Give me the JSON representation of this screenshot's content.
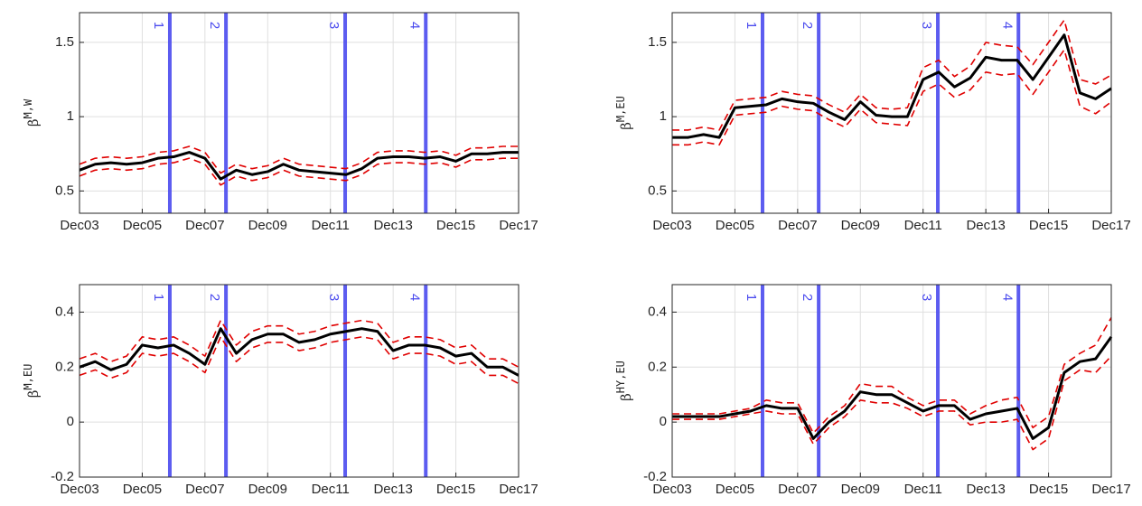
{
  "chart_data": [
    {
      "type": "line",
      "ylabel": "β",
      "ylabel_superscript": "M,W",
      "x": [
        2003.92,
        2004.42,
        2004.92,
        2005.42,
        2005.92,
        2006.42,
        2006.92,
        2007.42,
        2007.92,
        2008.42,
        2008.92,
        2009.42,
        2009.92,
        2010.42,
        2010.92,
        2011.42,
        2011.92,
        2012.42,
        2012.92,
        2013.42,
        2013.92,
        2014.42,
        2014.92,
        2015.42,
        2015.92,
        2016.42,
        2016.92,
        2017.42,
        2017.92
      ],
      "series": [
        {
          "color": "#000000",
          "values": [
            0.64,
            0.68,
            0.69,
            0.68,
            0.69,
            0.72,
            0.73,
            0.76,
            0.72,
            0.58,
            0.64,
            0.61,
            0.63,
            0.68,
            0.64,
            0.63,
            0.62,
            0.61,
            0.65,
            0.72,
            0.73,
            0.73,
            0.72,
            0.73,
            0.7,
            0.75,
            0.75,
            0.76,
            0.76
          ]
        },
        {
          "color": "#e00000",
          "dashed": true,
          "values": [
            0.68,
            0.72,
            0.73,
            0.72,
            0.73,
            0.76,
            0.77,
            0.8,
            0.76,
            0.62,
            0.68,
            0.65,
            0.67,
            0.72,
            0.68,
            0.67,
            0.66,
            0.65,
            0.69,
            0.76,
            0.77,
            0.77,
            0.76,
            0.77,
            0.74,
            0.79,
            0.79,
            0.8,
            0.8
          ]
        },
        {
          "color": "#e00000",
          "dashed": true,
          "values": [
            0.6,
            0.64,
            0.65,
            0.64,
            0.65,
            0.68,
            0.69,
            0.72,
            0.68,
            0.54,
            0.6,
            0.57,
            0.59,
            0.64,
            0.6,
            0.59,
            0.58,
            0.57,
            0.61,
            0.68,
            0.69,
            0.69,
            0.68,
            0.69,
            0.66,
            0.71,
            0.71,
            0.72,
            0.72
          ]
        }
      ],
      "events": [
        {
          "x": 2006.8,
          "label": "1"
        },
        {
          "x": 2008.59,
          "label": "2"
        },
        {
          "x": 2012.39,
          "label": "3"
        },
        {
          "x": 2014.96,
          "label": "4"
        }
      ],
      "event_color": "#4a4aee",
      "xlim": [
        2003.92,
        2017.92
      ],
      "xticks": [
        {
          "value": 2003.92,
          "label": "Dec03"
        },
        {
          "value": 2005.92,
          "label": "Dec05"
        },
        {
          "value": 2007.92,
          "label": "Dec07"
        },
        {
          "value": 2009.92,
          "label": "Dec09"
        },
        {
          "value": 2011.92,
          "label": "Dec11"
        },
        {
          "value": 2013.92,
          "label": "Dec13"
        },
        {
          "value": 2015.92,
          "label": "Dec15"
        },
        {
          "value": 2017.92,
          "label": "Dec17"
        }
      ],
      "ylim": [
        0.35,
        1.7
      ],
      "yticks": [
        0.5,
        1,
        1.5
      ],
      "grid": true
    },
    {
      "type": "line",
      "ylabel": "β",
      "ylabel_superscript": "M,EU",
      "x": [
        2003.92,
        2004.42,
        2004.92,
        2005.42,
        2005.92,
        2006.42,
        2006.92,
        2007.42,
        2007.92,
        2008.42,
        2008.92,
        2009.42,
        2009.92,
        2010.42,
        2010.92,
        2011.42,
        2011.92,
        2012.42,
        2012.92,
        2013.42,
        2013.92,
        2014.42,
        2014.92,
        2015.42,
        2015.92,
        2016.42,
        2016.92,
        2017.42,
        2017.92
      ],
      "series": [
        {
          "color": "#000000",
          "values": [
            0.86,
            0.86,
            0.88,
            0.86,
            1.06,
            1.07,
            1.08,
            1.12,
            1.1,
            1.09,
            1.03,
            0.98,
            1.1,
            1.01,
            1.0,
            1.0,
            1.25,
            1.3,
            1.2,
            1.26,
            1.4,
            1.38,
            1.38,
            1.25,
            1.4,
            1.55,
            1.16,
            1.12,
            1.19
          ]
        },
        {
          "color": "#e00000",
          "dashed": true,
          "values": [
            0.91,
            0.91,
            0.93,
            0.91,
            1.11,
            1.12,
            1.13,
            1.17,
            1.15,
            1.14,
            1.08,
            1.03,
            1.15,
            1.06,
            1.05,
            1.06,
            1.33,
            1.38,
            1.27,
            1.34,
            1.5,
            1.48,
            1.47,
            1.35,
            1.5,
            1.65,
            1.25,
            1.22,
            1.28
          ]
        },
        {
          "color": "#e00000",
          "dashed": true,
          "values": [
            0.81,
            0.81,
            0.83,
            0.81,
            1.01,
            1.02,
            1.03,
            1.07,
            1.05,
            1.04,
            0.98,
            0.93,
            1.05,
            0.96,
            0.95,
            0.94,
            1.17,
            1.22,
            1.13,
            1.18,
            1.3,
            1.28,
            1.29,
            1.15,
            1.3,
            1.45,
            1.07,
            1.02,
            1.1
          ]
        }
      ],
      "events": [
        {
          "x": 2006.8,
          "label": "1"
        },
        {
          "x": 2008.59,
          "label": "2"
        },
        {
          "x": 2012.39,
          "label": "3"
        },
        {
          "x": 2014.96,
          "label": "4"
        }
      ],
      "event_color": "#4a4aee",
      "xlim": [
        2003.92,
        2017.92
      ],
      "xticks": [
        {
          "value": 2003.92,
          "label": "Dec03"
        },
        {
          "value": 2005.92,
          "label": "Dec05"
        },
        {
          "value": 2007.92,
          "label": "Dec07"
        },
        {
          "value": 2009.92,
          "label": "Dec09"
        },
        {
          "value": 2011.92,
          "label": "Dec11"
        },
        {
          "value": 2013.92,
          "label": "Dec13"
        },
        {
          "value": 2015.92,
          "label": "Dec15"
        },
        {
          "value": 2017.92,
          "label": "Dec17"
        }
      ],
      "ylim": [
        0.35,
        1.7
      ],
      "yticks": [
        0.5,
        1,
        1.5
      ],
      "grid": true
    },
    {
      "type": "line",
      "ylabel": "β",
      "ylabel_superscript": "M,EU",
      "x": [
        2003.92,
        2004.42,
        2004.92,
        2005.42,
        2005.92,
        2006.42,
        2006.92,
        2007.42,
        2007.92,
        2008.42,
        2008.92,
        2009.42,
        2009.92,
        2010.42,
        2010.92,
        2011.42,
        2011.92,
        2012.42,
        2012.92,
        2013.42,
        2013.92,
        2014.42,
        2014.92,
        2015.42,
        2015.92,
        2016.42,
        2016.92,
        2017.42,
        2017.92
      ],
      "series": [
        {
          "color": "#000000",
          "values": [
            0.2,
            0.22,
            0.19,
            0.21,
            0.28,
            0.27,
            0.28,
            0.25,
            0.21,
            0.34,
            0.25,
            0.3,
            0.32,
            0.32,
            0.29,
            0.3,
            0.32,
            0.33,
            0.34,
            0.33,
            0.26,
            0.28,
            0.28,
            0.27,
            0.24,
            0.25,
            0.2,
            0.2,
            0.17
          ]
        },
        {
          "color": "#e00000",
          "dashed": true,
          "values": [
            0.23,
            0.25,
            0.22,
            0.24,
            0.31,
            0.3,
            0.31,
            0.28,
            0.24,
            0.37,
            0.28,
            0.33,
            0.35,
            0.35,
            0.32,
            0.33,
            0.35,
            0.36,
            0.37,
            0.36,
            0.29,
            0.31,
            0.31,
            0.3,
            0.27,
            0.28,
            0.23,
            0.23,
            0.2
          ]
        },
        {
          "color": "#e00000",
          "dashed": true,
          "values": [
            0.17,
            0.19,
            0.16,
            0.18,
            0.25,
            0.24,
            0.25,
            0.22,
            0.18,
            0.31,
            0.22,
            0.27,
            0.29,
            0.29,
            0.26,
            0.27,
            0.29,
            0.3,
            0.31,
            0.3,
            0.23,
            0.25,
            0.25,
            0.24,
            0.21,
            0.22,
            0.17,
            0.17,
            0.14
          ]
        }
      ],
      "events": [
        {
          "x": 2006.8,
          "label": "1"
        },
        {
          "x": 2008.59,
          "label": "2"
        },
        {
          "x": 2012.39,
          "label": "3"
        },
        {
          "x": 2014.96,
          "label": "4"
        }
      ],
      "event_color": "#4a4aee",
      "xlim": [
        2003.92,
        2017.92
      ],
      "xticks": [
        {
          "value": 2003.92,
          "label": "Dec03"
        },
        {
          "value": 2005.92,
          "label": "Dec05"
        },
        {
          "value": 2007.92,
          "label": "Dec07"
        },
        {
          "value": 2009.92,
          "label": "Dec09"
        },
        {
          "value": 2011.92,
          "label": "Dec11"
        },
        {
          "value": 2013.92,
          "label": "Dec13"
        },
        {
          "value": 2015.92,
          "label": "Dec15"
        },
        {
          "value": 2017.92,
          "label": "Dec17"
        }
      ],
      "ylim": [
        -0.2,
        0.5
      ],
      "yticks": [
        -0.2,
        0,
        0.2,
        0.4
      ],
      "grid": true
    },
    {
      "type": "line",
      "ylabel": "β",
      "ylabel_superscript": "HY,EU",
      "x": [
        2003.92,
        2004.42,
        2004.92,
        2005.42,
        2005.92,
        2006.42,
        2006.92,
        2007.42,
        2007.92,
        2008.42,
        2008.92,
        2009.42,
        2009.92,
        2010.42,
        2010.92,
        2011.42,
        2011.92,
        2012.42,
        2012.92,
        2013.42,
        2013.92,
        2014.42,
        2014.92,
        2015.42,
        2015.92,
        2016.42,
        2016.92,
        2017.42,
        2017.92
      ],
      "series": [
        {
          "color": "#000000",
          "values": [
            0.02,
            0.02,
            0.02,
            0.02,
            0.03,
            0.04,
            0.06,
            0.05,
            0.05,
            -0.06,
            0.0,
            0.04,
            0.11,
            0.1,
            0.1,
            0.07,
            0.04,
            0.06,
            0.06,
            0.01,
            0.03,
            0.04,
            0.05,
            -0.06,
            -0.02,
            0.18,
            0.22,
            0.23,
            0.31
          ]
        },
        {
          "color": "#e00000",
          "dashed": true,
          "values": [
            0.03,
            0.03,
            0.03,
            0.03,
            0.04,
            0.05,
            0.08,
            0.07,
            0.07,
            -0.04,
            0.02,
            0.06,
            0.14,
            0.13,
            0.13,
            0.09,
            0.06,
            0.08,
            0.08,
            0.03,
            0.06,
            0.08,
            0.09,
            -0.02,
            0.02,
            0.21,
            0.25,
            0.28,
            0.38
          ]
        },
        {
          "color": "#e00000",
          "dashed": true,
          "values": [
            0.01,
            0.01,
            0.01,
            0.01,
            0.02,
            0.03,
            0.04,
            0.03,
            0.03,
            -0.08,
            -0.02,
            0.02,
            0.08,
            0.07,
            0.07,
            0.05,
            0.02,
            0.04,
            0.04,
            -0.01,
            0.0,
            0.0,
            0.01,
            -0.1,
            -0.06,
            0.15,
            0.19,
            0.18,
            0.24
          ]
        }
      ],
      "events": [
        {
          "x": 2006.8,
          "label": "1"
        },
        {
          "x": 2008.59,
          "label": "2"
        },
        {
          "x": 2012.39,
          "label": "3"
        },
        {
          "x": 2014.96,
          "label": "4"
        }
      ],
      "event_color": "#4a4aee",
      "xlim": [
        2003.92,
        2017.92
      ],
      "xticks": [
        {
          "value": 2003.92,
          "label": "Dec03"
        },
        {
          "value": 2005.92,
          "label": "Dec05"
        },
        {
          "value": 2007.92,
          "label": "Dec07"
        },
        {
          "value": 2009.92,
          "label": "Dec09"
        },
        {
          "value": 2011.92,
          "label": "Dec11"
        },
        {
          "value": 2013.92,
          "label": "Dec13"
        },
        {
          "value": 2015.92,
          "label": "Dec15"
        },
        {
          "value": 2017.92,
          "label": "Dec17"
        }
      ],
      "ylim": [
        -0.2,
        0.5
      ],
      "yticks": [
        -0.2,
        0,
        0.2,
        0.4
      ],
      "grid": true
    }
  ]
}
